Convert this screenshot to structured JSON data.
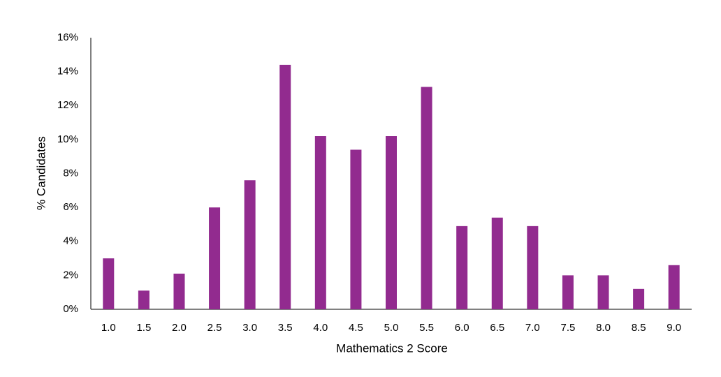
{
  "chart_data": {
    "type": "bar",
    "x_label": "Mathematics 2 Score",
    "y_label": "% Candidates",
    "categories": [
      "1.0",
      "1.5",
      "2.0",
      "2.5",
      "3.0",
      "3.5",
      "4.0",
      "4.5",
      "5.0",
      "5.5",
      "6.0",
      "6.5",
      "7.0",
      "7.5",
      "8.0",
      "8.5",
      "9.0"
    ],
    "values": [
      3.0,
      1.1,
      2.1,
      6.0,
      7.6,
      14.4,
      10.2,
      9.4,
      10.2,
      13.1,
      4.9,
      5.4,
      4.9,
      2.0,
      2.0,
      1.2,
      2.6
    ],
    "color": "#922b8f",
    "ylim": [
      0,
      16
    ],
    "yticks": [
      {
        "value": 0,
        "label": "0%"
      },
      {
        "value": 2,
        "label": "2%"
      },
      {
        "value": 4,
        "label": "4%"
      },
      {
        "value": 6,
        "label": "6%"
      },
      {
        "value": 8,
        "label": "8%"
      },
      {
        "value": 10,
        "label": "10%"
      },
      {
        "value": 12,
        "label": "12%"
      },
      {
        "value": 14,
        "label": "14%"
      },
      {
        "value": 16,
        "label": "16%"
      }
    ],
    "grid": false
  }
}
